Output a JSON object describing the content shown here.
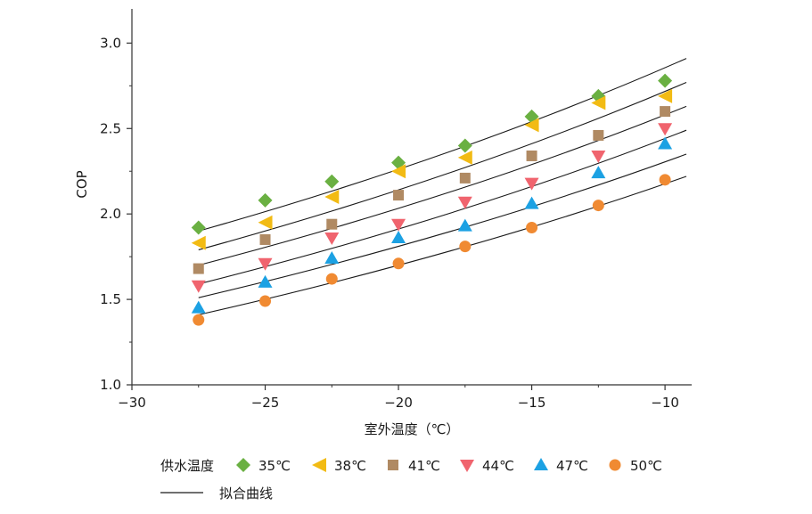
{
  "chart_data": {
    "type": "scatter",
    "xlabel": "室外温度（℃）",
    "ylabel": "COP",
    "xlim": [
      -30,
      -9
    ],
    "ylim": [
      1.0,
      3.2
    ],
    "x_ticks": [
      -30,
      -25,
      -20,
      -15,
      -10
    ],
    "y_ticks": [
      1.0,
      1.5,
      2.0,
      2.5,
      3.0
    ],
    "x_tick_labels": [
      "−30",
      "−25",
      "−20",
      "−15",
      "−10"
    ],
    "y_tick_labels": [
      "1.0",
      "1.5",
      "2.0",
      "2.5",
      "3.0"
    ],
    "grid": false,
    "legend_position": "bottom",
    "legend_title": "供水温度",
    "fit_label": "拟合曲线",
    "x": [
      -27.5,
      -25,
      -22.5,
      -20,
      -17.5,
      -15,
      -12.5,
      -10
    ],
    "series": [
      {
        "name": "35℃",
        "marker": "diamond",
        "color": "#6ab042",
        "values": [
          1.92,
          2.08,
          2.19,
          2.3,
          2.4,
          2.57,
          2.69,
          2.78
        ],
        "fit": {
          "x": [
            -27.5,
            -9.2
          ],
          "y": [
            1.9,
            2.91
          ]
        }
      },
      {
        "name": "38℃",
        "marker": "triangle-left",
        "color": "#f2bb14",
        "values": [
          1.83,
          1.95,
          2.1,
          2.25,
          2.33,
          2.52,
          2.65,
          2.69
        ],
        "fit": {
          "x": [
            -27.5,
            -9.2
          ],
          "y": [
            1.79,
            2.77
          ]
        }
      },
      {
        "name": "41℃",
        "marker": "square",
        "color": "#b08a63",
        "values": [
          1.68,
          1.85,
          1.94,
          2.11,
          2.21,
          2.34,
          2.46,
          2.6
        ],
        "fit": {
          "x": [
            -27.5,
            -9.2
          ],
          "y": [
            1.7,
            2.63
          ]
        }
      },
      {
        "name": "44℃",
        "marker": "triangle-down",
        "color": "#f0646e",
        "values": [
          1.58,
          1.71,
          1.86,
          1.94,
          2.07,
          2.18,
          2.34,
          2.5
        ],
        "fit": {
          "x": [
            -27.5,
            -9.2
          ],
          "y": [
            1.59,
            2.49
          ]
        }
      },
      {
        "name": "47℃",
        "marker": "triangle-up",
        "color": "#1ca1e3",
        "values": [
          1.45,
          1.6,
          1.74,
          1.86,
          1.93,
          2.06,
          2.24,
          2.41
        ],
        "fit": {
          "x": [
            -27.5,
            -9.2
          ],
          "y": [
            1.51,
            2.35
          ]
        }
      },
      {
        "name": "50℃",
        "marker": "circle",
        "color": "#f08a32",
        "values": [
          1.38,
          1.49,
          1.62,
          1.71,
          1.81,
          1.92,
          2.05,
          2.2
        ],
        "fit": {
          "x": [
            -27.5,
            -9.2
          ],
          "y": [
            1.41,
            2.22
          ]
        }
      }
    ]
  }
}
